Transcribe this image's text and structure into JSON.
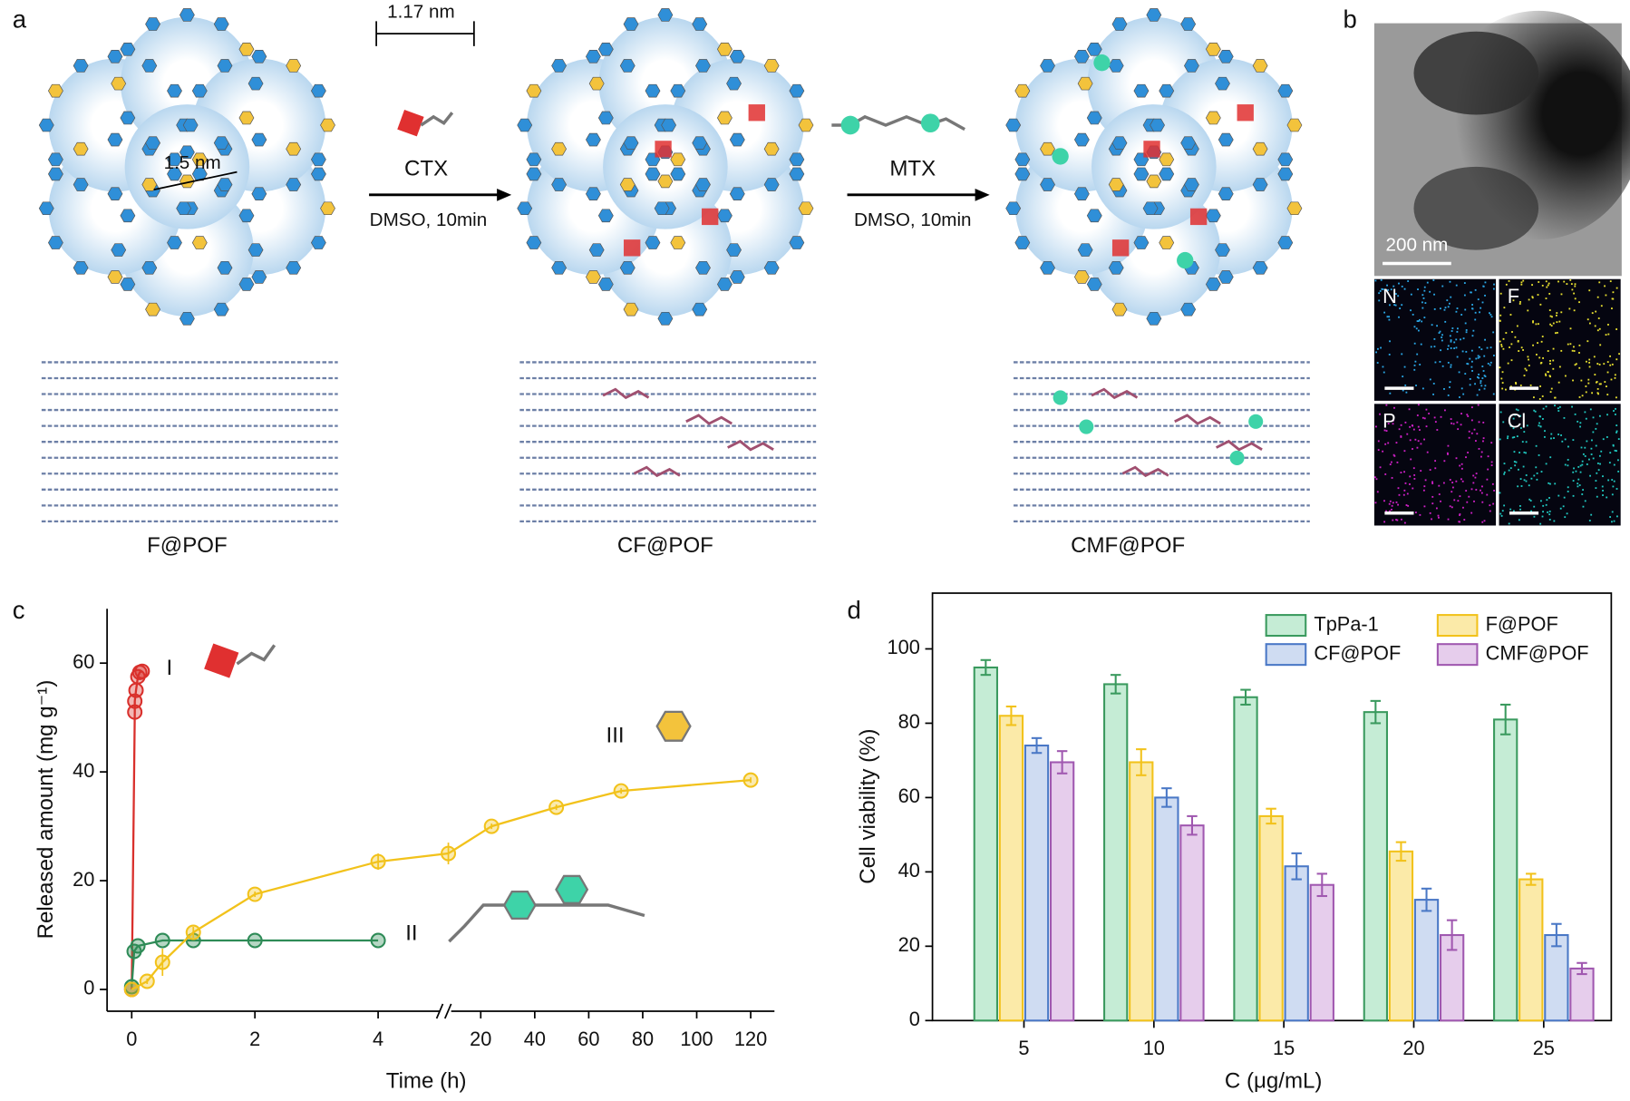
{
  "panel_labels": [
    "a",
    "b",
    "c",
    "d"
  ],
  "scheme": {
    "pore_size": "1.5 nm",
    "drug_size": "1.17 nm",
    "steps": [
      {
        "drug": "CTX",
        "condition": "DMSO, 10min"
      },
      {
        "drug": "MTX",
        "condition": "DMSO, 10min"
      }
    ],
    "materials": [
      "F@POF",
      "CF@POF",
      "CMF@POF"
    ]
  },
  "tem": {
    "scale_bar": "200 nm",
    "maps": [
      "N",
      "F",
      "P",
      "Cl"
    ]
  },
  "chart_data": [
    {
      "type": "line",
      "xlabel": "Time (h)",
      "ylabel": "Released amount (mg g⁻¹)",
      "xlim": [
        -0.4,
        5.0
      ],
      "xticks": [
        0,
        2,
        4
      ],
      "x2lim": [
        7.5,
        128.8
      ],
      "x2ticks": [
        20,
        40,
        60,
        80,
        100,
        120
      ],
      "ylim": [
        -4,
        70
      ],
      "yticks": [
        0,
        20,
        40,
        60
      ],
      "series": [
        {
          "name": "I",
          "color": "#d9302c",
          "x": [
            0,
            0.05,
            0.05,
            0.07,
            0.1,
            0.13,
            0.17
          ],
          "values": [
            0,
            51,
            53,
            55,
            57.5,
            58.3,
            58.5
          ]
        },
        {
          "name": "II",
          "color": "#2e8b57",
          "x": [
            0,
            0.04,
            0.1,
            0.5,
            1,
            2,
            4
          ],
          "values": [
            0.5,
            7,
            8,
            9,
            9,
            9,
            9
          ]
        },
        {
          "name": "III",
          "color": "#f2c21b",
          "x": [
            0,
            0.25,
            0.5,
            1,
            2,
            4,
            8,
            24,
            48,
            72,
            120
          ],
          "values": [
            0,
            1.5,
            5,
            10.5,
            17.5,
            23.5,
            25,
            30,
            33.5,
            36.5,
            38.5
          ],
          "errors": [
            0,
            0.5,
            2.5,
            1,
            0.5,
            1.5,
            2,
            0.5,
            0.5,
            0.5,
            0.5
          ]
        }
      ]
    },
    {
      "type": "bar",
      "xlabel": "C (μg/mL)",
      "ylabel": "Cell viability (%)",
      "categories": [
        "5",
        "10",
        "15",
        "20",
        "25"
      ],
      "ylim": [
        0,
        115
      ],
      "yticks": [
        0,
        20,
        40,
        60,
        80,
        100
      ],
      "legend": "upper right",
      "series": [
        {
          "name": "TpPa-1",
          "color": "#3a9a5e",
          "fill": "#c5ecd5",
          "values": [
            95,
            90.5,
            87,
            83,
            81
          ],
          "errors": [
            2,
            2.5,
            2,
            3,
            4
          ]
        },
        {
          "name": "F@POF",
          "color": "#f2c21b",
          "fill": "#fbeaa8",
          "values": [
            82,
            69.5,
            55,
            45.5,
            38
          ],
          "errors": [
            2.5,
            3.5,
            2,
            2.5,
            1.5
          ]
        },
        {
          "name": "CF@POF",
          "color": "#4a78c6",
          "fill": "#cfdcf2",
          "values": [
            74,
            60,
            41.5,
            32.5,
            23
          ],
          "errors": [
            2,
            2.5,
            3.5,
            3,
            3
          ]
        },
        {
          "name": "CMF@POF",
          "color": "#a058b0",
          "fill": "#e6cdec",
          "values": [
            69.5,
            52.5,
            36.5,
            23,
            14
          ],
          "errors": [
            3,
            2.5,
            3,
            4,
            1.5
          ]
        }
      ]
    }
  ]
}
